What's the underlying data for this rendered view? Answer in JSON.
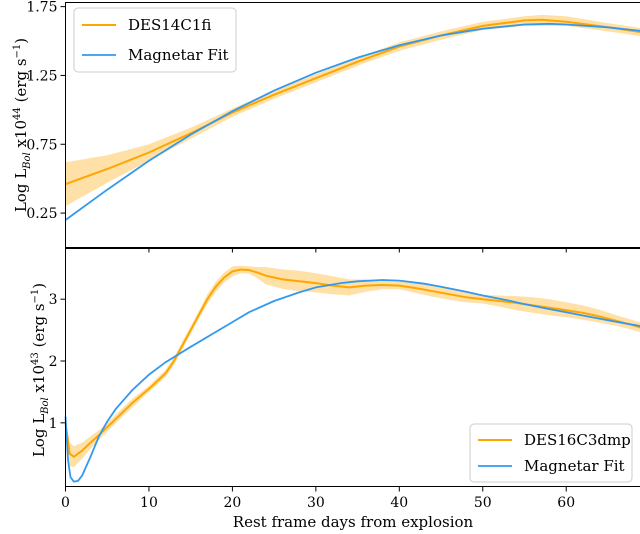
{
  "figure": {
    "xlabel": "Rest frame days from explosion",
    "x_ticks": [
      "0",
      "10",
      "20",
      "30",
      "40",
      "50",
      "60"
    ]
  },
  "chart_data": [
    {
      "type": "line",
      "panel": "top",
      "ylabel_main": "Log L",
      "ylabel_sub": "Bol",
      "ylabel_tail": " x10",
      "ylabel_exp": "44",
      "ylabel_units": " (erg s",
      "ylabel_units_exp": "−1",
      "ylabel_close": ")",
      "xlim": [
        0,
        69.5
      ],
      "ylim": [
        0.0,
        1.78
      ],
      "y_ticks": [
        0.25,
        0.75,
        1.25,
        1.75
      ],
      "y_tick_labels": [
        "0.25",
        "0.75",
        "1.25",
        "1.75"
      ],
      "legend_position": "upper-left",
      "series": [
        {
          "name": "DES14C1fi",
          "role": "data",
          "color": "#FFA500",
          "x": [
            0,
            5,
            10,
            15,
            20,
            25,
            30,
            35,
            40,
            45,
            50,
            55,
            57,
            60,
            65,
            69.5
          ],
          "y": [
            0.46,
            0.57,
            0.69,
            0.83,
            0.98,
            1.11,
            1.23,
            1.35,
            1.46,
            1.54,
            1.61,
            1.65,
            1.655,
            1.64,
            1.6,
            1.56
          ],
          "band_low": [
            0.3,
            0.47,
            0.63,
            0.79,
            0.95,
            1.08,
            1.2,
            1.32,
            1.43,
            1.51,
            1.58,
            1.61,
            1.61,
            1.61,
            1.57,
            1.53
          ],
          "band_high": [
            0.62,
            0.67,
            0.75,
            0.87,
            1.01,
            1.14,
            1.26,
            1.38,
            1.49,
            1.57,
            1.64,
            1.68,
            1.69,
            1.68,
            1.63,
            1.59
          ]
        },
        {
          "name": "Magnetar Fit",
          "role": "fit",
          "color": "#3399EE",
          "x": [
            0,
            5,
            10,
            15,
            20,
            25,
            30,
            35,
            40,
            45,
            50,
            55,
            58,
            60,
            65,
            69.5
          ],
          "y": [
            0.2,
            0.42,
            0.63,
            0.82,
            0.99,
            1.14,
            1.27,
            1.38,
            1.47,
            1.54,
            1.59,
            1.62,
            1.625,
            1.62,
            1.6,
            1.57
          ]
        }
      ]
    },
    {
      "type": "line",
      "panel": "bottom",
      "ylabel_main": "Log L",
      "ylabel_sub": "Bol",
      "ylabel_tail": " x10",
      "ylabel_exp": "43",
      "ylabel_units": " (erg s",
      "ylabel_units_exp": "−1",
      "ylabel_close": ")",
      "xlim": [
        0,
        69.5
      ],
      "ylim": [
        -0.03,
        3.82
      ],
      "y_ticks": [
        1,
        2,
        3
      ],
      "y_tick_labels": [
        "1",
        "2",
        "3"
      ],
      "legend_position": "lower-right",
      "series": [
        {
          "name": "DES16C3dmp",
          "role": "data",
          "color": "#FFA500",
          "x": [
            0,
            0.5,
            1,
            2,
            3,
            4,
            5,
            6,
            7,
            8,
            10,
            12,
            13,
            14,
            15,
            16,
            17,
            18,
            19,
            20,
            21,
            22,
            23,
            24,
            26,
            28,
            30,
            32,
            34,
            36,
            38,
            40,
            42,
            44,
            46,
            48,
            50,
            52,
            54,
            56,
            58,
            60,
            62,
            64,
            66,
            68,
            69.5
          ],
          "y": [
            1.0,
            0.5,
            0.45,
            0.55,
            0.68,
            0.8,
            0.93,
            1.06,
            1.19,
            1.32,
            1.55,
            1.8,
            2.0,
            2.25,
            2.5,
            2.75,
            3.0,
            3.2,
            3.35,
            3.45,
            3.48,
            3.47,
            3.43,
            3.38,
            3.32,
            3.29,
            3.26,
            3.22,
            3.19,
            3.22,
            3.23,
            3.22,
            3.18,
            3.13,
            3.08,
            3.03,
            3.0,
            2.97,
            2.94,
            2.9,
            2.86,
            2.82,
            2.78,
            2.72,
            2.65,
            2.58,
            2.52
          ],
          "band_low": [
            0.95,
            0.3,
            0.28,
            0.42,
            0.58,
            0.72,
            0.86,
            0.99,
            1.12,
            1.25,
            1.5,
            1.74,
            1.94,
            2.19,
            2.44,
            2.69,
            2.92,
            3.12,
            3.27,
            3.37,
            3.42,
            3.41,
            3.34,
            3.24,
            3.17,
            3.13,
            3.11,
            3.08,
            3.06,
            3.12,
            3.16,
            3.16,
            3.1,
            3.04,
            2.99,
            2.95,
            2.93,
            2.88,
            2.82,
            2.78,
            2.74,
            2.71,
            2.67,
            2.62,
            2.57,
            2.5,
            2.44
          ],
          "band_high": [
            1.05,
            0.68,
            0.62,
            0.68,
            0.78,
            0.88,
            1.0,
            1.13,
            1.26,
            1.39,
            1.6,
            1.86,
            2.06,
            2.31,
            2.56,
            2.81,
            3.08,
            3.28,
            3.43,
            3.53,
            3.54,
            3.53,
            3.52,
            3.52,
            3.48,
            3.46,
            3.42,
            3.37,
            3.32,
            3.32,
            3.3,
            3.28,
            3.26,
            3.22,
            3.17,
            3.11,
            3.07,
            3.06,
            3.05,
            3.03,
            3.0,
            2.95,
            2.9,
            2.83,
            2.74,
            2.66,
            2.6
          ]
        },
        {
          "name": "Magnetar Fit",
          "role": "fit",
          "color": "#3399EE",
          "x": [
            0,
            0.3,
            0.6,
            1,
            1.5,
            2,
            3,
            4,
            5,
            6,
            8,
            10,
            12,
            15,
            18,
            20,
            22,
            25,
            28,
            30,
            33,
            35,
            38,
            40,
            43,
            45,
            48,
            50,
            53,
            55,
            58,
            60,
            63,
            65,
            69.5
          ],
          "y": [
            1.1,
            0.4,
            0.12,
            0.05,
            0.06,
            0.15,
            0.45,
            0.78,
            1.02,
            1.22,
            1.53,
            1.78,
            1.98,
            2.23,
            2.47,
            2.63,
            2.79,
            2.97,
            3.11,
            3.19,
            3.26,
            3.29,
            3.31,
            3.3,
            3.25,
            3.2,
            3.12,
            3.06,
            2.98,
            2.92,
            2.84,
            2.79,
            2.71,
            2.66,
            2.55
          ]
        }
      ]
    }
  ]
}
